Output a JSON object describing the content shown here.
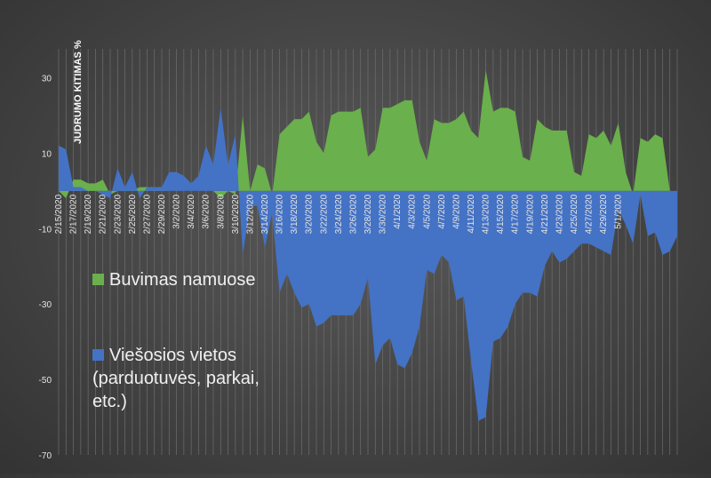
{
  "chart_data": {
    "type": "area",
    "ylabel": "JUDRUMO KITIMAS %",
    "xlabel": "",
    "ylim": [
      -70,
      40
    ],
    "y_ticks": [
      30,
      10,
      -10,
      -30,
      -50,
      -70
    ],
    "grid": "vertical-lines",
    "x_tick_labels": [
      "2/15/2020",
      "2/17/2020",
      "2/19/2020",
      "2/21/2020",
      "2/23/2020",
      "2/25/2020",
      "2/27/2020",
      "2/29/2020",
      "3/2/2020",
      "3/4/2020",
      "3/6/2020",
      "3/8/2020",
      "3/10/2020",
      "3/12/2020",
      "3/14/2020",
      "3/16/2020",
      "3/18/2020",
      "3/20/2020",
      "3/22/2020",
      "3/24/2020",
      "3/26/2020",
      "3/28/2020",
      "3/30/2020",
      "4/1/2020",
      "4/3/2020",
      "4/5/2020",
      "4/7/2020",
      "4/9/2020",
      "4/11/2020",
      "4/13/2020",
      "4/15/2020",
      "4/17/2020",
      "4/19/2020",
      "4/21/2020",
      "4/23/2020",
      "4/25/2020",
      "4/27/2020",
      "4/29/2020",
      "5/1/2020"
    ],
    "x": [
      "2/15/2020",
      "2/16/2020",
      "2/17/2020",
      "2/18/2020",
      "2/19/2020",
      "2/20/2020",
      "2/21/2020",
      "2/22/2020",
      "2/23/2020",
      "2/24/2020",
      "2/25/2020",
      "2/26/2020",
      "2/27/2020",
      "2/28/2020",
      "2/29/2020",
      "3/1/2020",
      "3/2/2020",
      "3/3/2020",
      "3/4/2020",
      "3/5/2020",
      "3/6/2020",
      "3/7/2020",
      "3/8/2020",
      "3/9/2020",
      "3/10/2020",
      "3/11/2020",
      "3/12/2020",
      "3/13/2020",
      "3/14/2020",
      "3/15/2020",
      "3/16/2020",
      "3/17/2020",
      "3/18/2020",
      "3/19/2020",
      "3/20/2020",
      "3/21/2020",
      "3/22/2020",
      "3/23/2020",
      "3/24/2020",
      "3/25/2020",
      "3/26/2020",
      "3/27/2020",
      "3/28/2020",
      "3/29/2020",
      "3/30/2020",
      "3/31/2020",
      "4/1/2020",
      "4/2/2020",
      "4/3/2020",
      "4/4/2020",
      "4/5/2020",
      "4/6/2020",
      "4/7/2020",
      "4/8/2020",
      "4/9/2020",
      "4/10/2020",
      "4/11/2020",
      "4/12/2020",
      "4/13/2020",
      "4/14/2020",
      "4/15/2020",
      "4/16/2020",
      "4/17/2020",
      "4/18/2020",
      "4/19/2020",
      "4/20/2020",
      "4/21/2020",
      "4/22/2020",
      "4/23/2020",
      "4/24/2020",
      "4/25/2020",
      "4/26/2020",
      "4/27/2020",
      "4/28/2020",
      "4/29/2020",
      "4/30/2020",
      "5/1/2020",
      "5/2/2020",
      "5/3/2020",
      "5/4/2020",
      "5/5/2020",
      "5/6/2020",
      "5/7/2020",
      "5/8/2020",
      "5/9/2020"
    ],
    "series": [
      {
        "name": "Buvimas namuose",
        "color": "#6ab04c",
        "values": [
          0,
          -2,
          3,
          3,
          2,
          2,
          3,
          -1,
          0,
          1,
          0,
          1,
          1,
          1,
          1,
          0,
          0,
          0,
          0,
          0,
          0,
          0,
          -2,
          0,
          -1,
          20,
          0,
          7,
          6,
          -1,
          15,
          17,
          19,
          19,
          21,
          13,
          10,
          20,
          21,
          21,
          21,
          22,
          9,
          11,
          22,
          22,
          23,
          24,
          24,
          13,
          8,
          19,
          18,
          18,
          19,
          21,
          16,
          14,
          32,
          21,
          22,
          22,
          21,
          9,
          8,
          19,
          17,
          16,
          16,
          16,
          5,
          4,
          15,
          14,
          16,
          12,
          18,
          5,
          -1,
          14,
          13,
          15,
          14,
          0,
          0
        ]
      },
      {
        "name": "Viešosios vietos (parduotuvės, parkai, etc.)",
        "color": "#4472c4",
        "values": [
          12,
          11,
          1,
          1,
          0,
          0,
          -1,
          -2,
          6,
          1,
          5,
          -2,
          1,
          1,
          1,
          5,
          5,
          4,
          2,
          4,
          12,
          7,
          22,
          7,
          15,
          -17,
          -4,
          -4,
          -15,
          -6,
          -27,
          -22,
          -27,
          -31,
          -30,
          -36,
          -35,
          -33,
          -33,
          -33,
          -33,
          -30,
          -23,
          -46,
          -41,
          -39,
          -46,
          -47,
          -43,
          -36,
          -21,
          -22,
          -17,
          -19,
          -29,
          -28,
          -45,
          -61,
          -60,
          -40,
          -39,
          -36,
          -30,
          -27,
          -27,
          -28,
          -20,
          -16,
          -19,
          -18,
          -16,
          -14,
          -14,
          -15,
          -16,
          -17,
          -5,
          -9,
          -14,
          -1,
          -12,
          -11,
          -17,
          -16,
          -12
        ]
      }
    ],
    "legend": [
      {
        "label": "Buvimas namuose",
        "color": "#6ab04c"
      },
      {
        "label_lines": [
          "Viešosios vietos",
          "(parduotuvės, parkai,",
          "etc.)"
        ],
        "color": "#4472c4"
      }
    ],
    "legend_placement": "left-middle"
  }
}
